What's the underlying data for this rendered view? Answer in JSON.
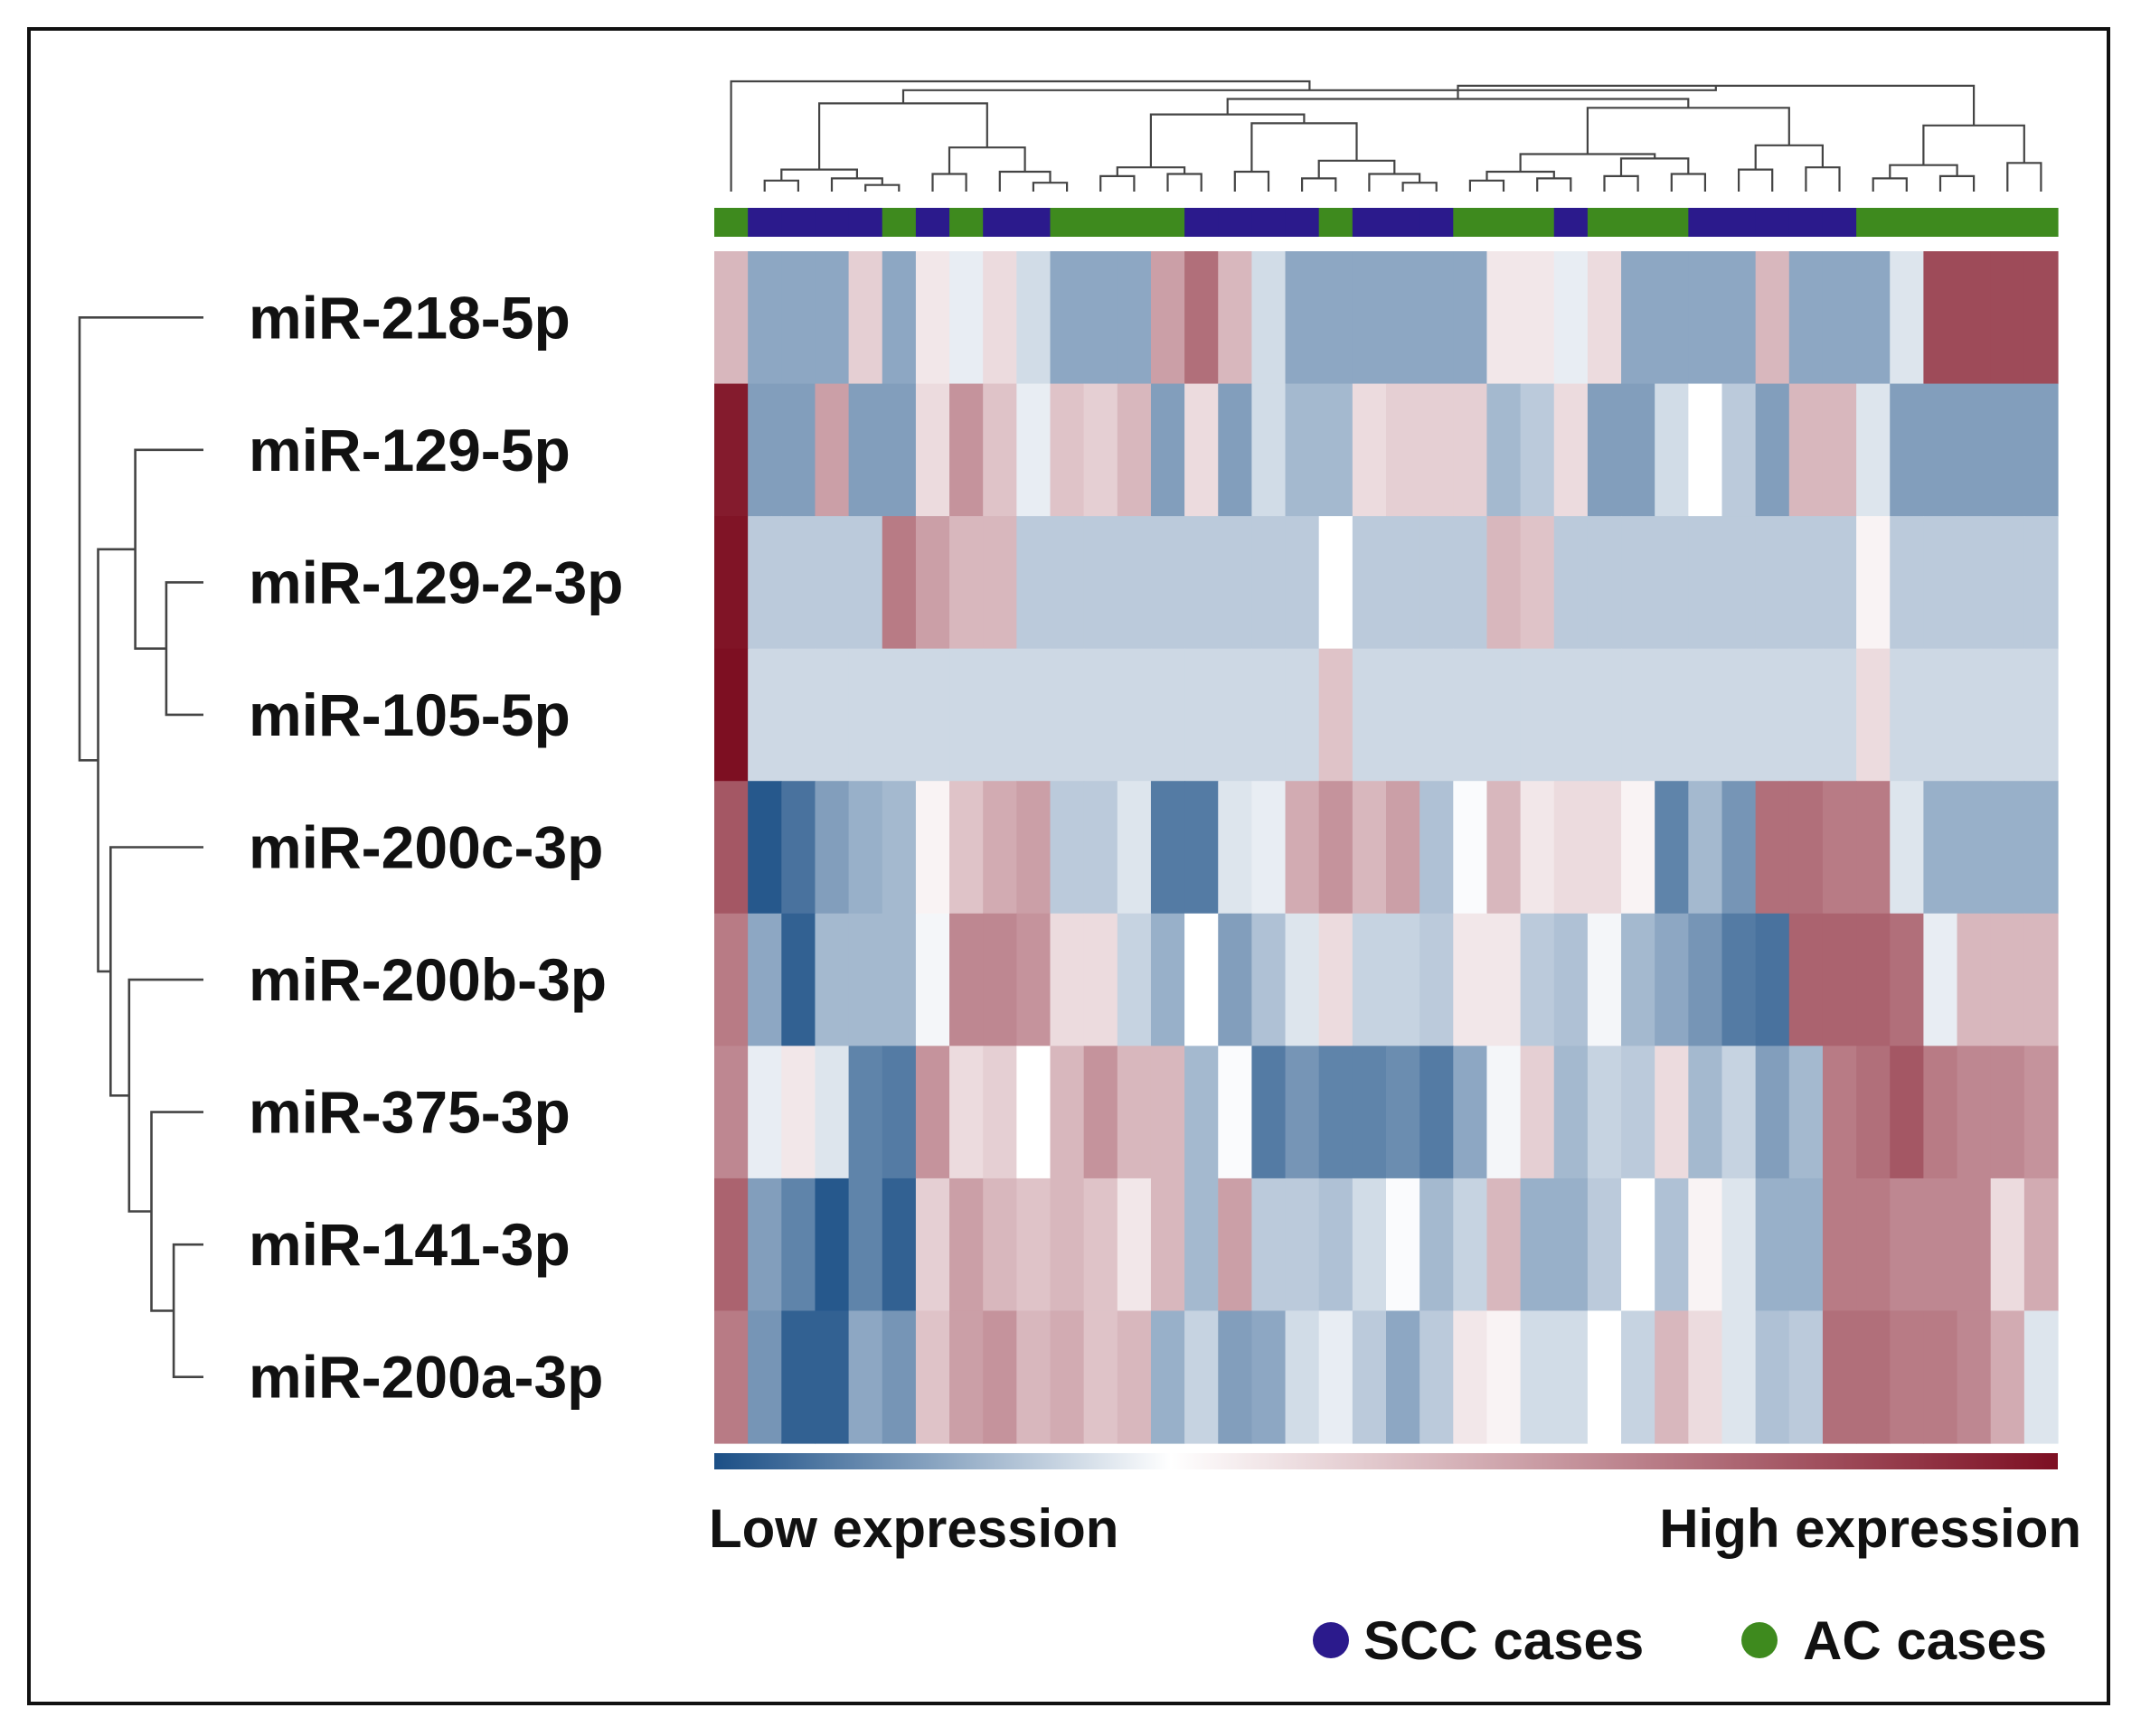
{
  "chart_data": {
    "type": "heatmap",
    "title": "",
    "rows": [
      "miR-218-5p",
      "miR-129-5p",
      "miR-129-2-3p",
      "miR-105-5p",
      "miR-200c-3p",
      "miR-200b-3p",
      "miR-375-3p",
      "miR-141-3p",
      "miR-200a-3p"
    ],
    "groups": [
      "AC",
      "SCC",
      "SCC",
      "SCC",
      "SCC",
      "AC",
      "SCC",
      "AC",
      "SCC",
      "SCC",
      "AC",
      "AC",
      "AC",
      "AC",
      "SCC",
      "SCC",
      "SCC",
      "SCC",
      "AC",
      "SCC",
      "SCC",
      "SCC",
      "AC",
      "AC",
      "AC",
      "SCC",
      "AC",
      "AC",
      "AC",
      "SCC",
      "SCC",
      "SCC",
      "SCC",
      "SCC",
      "AC",
      "AC",
      "AC",
      "AC",
      "AC",
      "AC"
    ],
    "values": [
      [
        0.3,
        -0.5,
        -0.5,
        -0.5,
        0.2,
        -0.5,
        0.1,
        -0.1,
        0.15,
        -0.2,
        -0.5,
        -0.5,
        -0.5,
        0.4,
        0.6,
        0.3,
        -0.2,
        -0.5,
        -0.5,
        -0.5,
        -0.5,
        -0.5,
        -0.5,
        0.1,
        0.1,
        -0.1,
        0.15,
        -0.5,
        -0.5,
        -0.5,
        -0.5,
        0.3,
        -0.5,
        -0.5,
        -0.5,
        -0.15,
        0.75,
        0.75,
        0.75,
        0.75
      ],
      [
        0.95,
        -0.55,
        -0.55,
        0.4,
        -0.55,
        -0.55,
        0.15,
        0.45,
        0.25,
        -0.1,
        0.25,
        0.2,
        0.3,
        -0.55,
        0.15,
        -0.55,
        -0.2,
        -0.4,
        -0.4,
        0.15,
        0.2,
        0.2,
        0.2,
        -0.4,
        -0.3,
        0.15,
        -0.55,
        -0.55,
        -0.2,
        0.0,
        -0.3,
        -0.55,
        0.3,
        0.3,
        -0.15,
        -0.55,
        -0.55,
        -0.55,
        -0.55,
        -0.55
      ],
      [
        0.98,
        -0.3,
        -0.3,
        -0.3,
        -0.3,
        0.55,
        0.4,
        0.3,
        0.3,
        -0.3,
        -0.3,
        -0.3,
        -0.3,
        -0.3,
        -0.3,
        -0.3,
        -0.3,
        -0.3,
        0.0,
        -0.3,
        -0.3,
        -0.3,
        -0.3,
        0.3,
        0.25,
        -0.3,
        -0.3,
        -0.3,
        -0.3,
        -0.3,
        -0.3,
        -0.3,
        -0.3,
        -0.3,
        0.05,
        -0.3,
        -0.3,
        -0.3,
        -0.3,
        -0.3
      ],
      [
        1.0,
        -0.22,
        -0.22,
        -0.22,
        -0.22,
        -0.22,
        -0.22,
        -0.22,
        -0.22,
        -0.22,
        -0.22,
        -0.22,
        -0.22,
        -0.22,
        -0.22,
        -0.22,
        -0.22,
        -0.22,
        0.25,
        -0.22,
        -0.22,
        -0.22,
        -0.22,
        -0.22,
        -0.22,
        -0.22,
        -0.22,
        -0.22,
        -0.22,
        -0.22,
        -0.22,
        -0.22,
        -0.22,
        -0.22,
        0.15,
        -0.22,
        -0.22,
        -0.22,
        -0.22,
        -0.22
      ],
      [
        0.7,
        -0.95,
        -0.8,
        -0.55,
        -0.45,
        -0.4,
        0.05,
        0.25,
        0.35,
        0.4,
        -0.3,
        -0.3,
        -0.15,
        -0.75,
        -0.75,
        -0.15,
        -0.1,
        0.35,
        0.45,
        0.3,
        0.4,
        -0.35,
        -0.02,
        0.3,
        0.1,
        0.15,
        0.15,
        0.05,
        -0.7,
        -0.4,
        -0.6,
        0.6,
        0.6,
        0.55,
        0.55,
        -0.15,
        -0.45,
        -0.45,
        -0.45,
        -0.45
      ],
      [
        0.55,
        -0.5,
        -0.9,
        -0.4,
        -0.4,
        -0.4,
        -0.05,
        0.5,
        0.5,
        0.45,
        0.15,
        0.15,
        -0.25,
        -0.45,
        0.0,
        -0.55,
        -0.35,
        -0.15,
        0.15,
        -0.25,
        -0.25,
        -0.3,
        0.1,
        0.1,
        -0.3,
        -0.35,
        -0.05,
        -0.4,
        -0.5,
        -0.6,
        -0.75,
        -0.8,
        0.65,
        0.65,
        0.65,
        0.6,
        -0.1,
        0.3,
        0.3,
        0.3
      ],
      [
        0.5,
        -0.1,
        0.1,
        -0.15,
        -0.7,
        -0.75,
        0.45,
        0.15,
        0.2,
        0.0,
        0.3,
        0.45,
        0.3,
        0.3,
        -0.4,
        -0.02,
        -0.75,
        -0.6,
        -0.7,
        -0.7,
        -0.65,
        -0.75,
        -0.5,
        -0.05,
        0.2,
        -0.4,
        -0.25,
        -0.3,
        0.15,
        -0.4,
        -0.25,
        -0.55,
        -0.4,
        0.55,
        0.6,
        0.7,
        0.55,
        0.5,
        0.5,
        0.45
      ],
      [
        0.65,
        -0.55,
        -0.7,
        -0.95,
        -0.7,
        -0.9,
        0.2,
        0.4,
        0.3,
        0.25,
        0.3,
        0.25,
        0.1,
        0.3,
        -0.4,
        0.4,
        -0.3,
        -0.3,
        -0.35,
        -0.2,
        -0.02,
        -0.4,
        -0.25,
        0.3,
        -0.45,
        -0.45,
        -0.3,
        0.0,
        -0.35,
        0.05,
        -0.15,
        -0.45,
        -0.45,
        0.55,
        0.55,
        0.5,
        0.5,
        0.5,
        0.15,
        0.35
      ],
      [
        0.55,
        -0.6,
        -0.9,
        -0.9,
        -0.5,
        -0.6,
        0.25,
        0.4,
        0.45,
        0.3,
        0.35,
        0.25,
        0.3,
        -0.45,
        -0.25,
        -0.55,
        -0.5,
        -0.2,
        -0.1,
        -0.3,
        -0.5,
        -0.3,
        0.1,
        0.05,
        -0.2,
        -0.2,
        0.0,
        -0.25,
        0.3,
        0.15,
        -0.15,
        -0.35,
        -0.3,
        0.6,
        0.6,
        0.55,
        0.55,
        0.5,
        0.35,
        -0.15
      ]
    ],
    "color_scale": {
      "low": "#1b4f86",
      "mid": "#ffffff",
      "high": "#7d0f22"
    },
    "colorbar_labels": {
      "low": "Low expression",
      "high": "High expression"
    },
    "legend": [
      {
        "label": "SCC cases",
        "color": "#2b1a8c"
      },
      {
        "label": "AC cases",
        "color": "#3e8a1e"
      }
    ]
  },
  "colors": {
    "scc": "#2b1a8c",
    "ac": "#3e8a1e",
    "dendrogram": "#444444"
  }
}
